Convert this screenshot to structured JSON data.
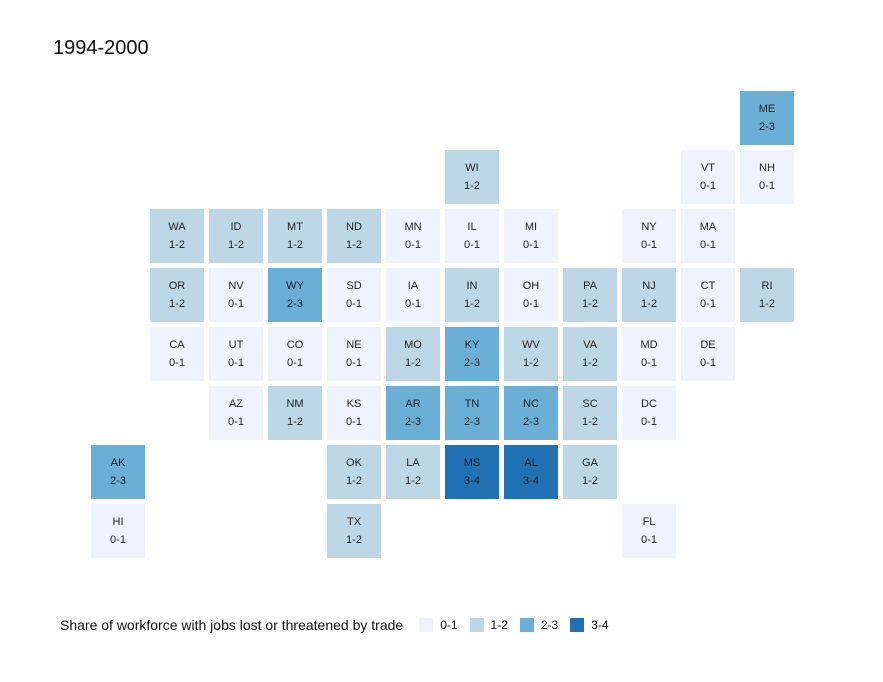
{
  "title": "1994-2000",
  "legend": {
    "title": "Share of workforce with jobs lost or threatened by trade",
    "items": [
      {
        "label": "0-1",
        "color": "#eff3ff"
      },
      {
        "label": "1-2",
        "color": "#bdd7e7"
      },
      {
        "label": "2-3",
        "color": "#6baed6"
      },
      {
        "label": "3-4",
        "color": "#2171b5"
      }
    ]
  },
  "states": [
    {
      "abbr": "ME",
      "range": "2-3",
      "col": 11,
      "row": 0
    },
    {
      "abbr": "WI",
      "range": "1-2",
      "col": 6,
      "row": 1
    },
    {
      "abbr": "VT",
      "range": "0-1",
      "col": 10,
      "row": 1
    },
    {
      "abbr": "NH",
      "range": "0-1",
      "col": 11,
      "row": 1
    },
    {
      "abbr": "WA",
      "range": "1-2",
      "col": 1,
      "row": 2
    },
    {
      "abbr": "ID",
      "range": "1-2",
      "col": 2,
      "row": 2
    },
    {
      "abbr": "MT",
      "range": "1-2",
      "col": 3,
      "row": 2
    },
    {
      "abbr": "ND",
      "range": "1-2",
      "col": 4,
      "row": 2
    },
    {
      "abbr": "MN",
      "range": "0-1",
      "col": 5,
      "row": 2
    },
    {
      "abbr": "IL",
      "range": "0-1",
      "col": 6,
      "row": 2
    },
    {
      "abbr": "MI",
      "range": "0-1",
      "col": 7,
      "row": 2
    },
    {
      "abbr": "NY",
      "range": "0-1",
      "col": 9,
      "row": 2
    },
    {
      "abbr": "MA",
      "range": "0-1",
      "col": 10,
      "row": 2
    },
    {
      "abbr": "OR",
      "range": "1-2",
      "col": 1,
      "row": 3
    },
    {
      "abbr": "NV",
      "range": "0-1",
      "col": 2,
      "row": 3
    },
    {
      "abbr": "WY",
      "range": "2-3",
      "col": 3,
      "row": 3
    },
    {
      "abbr": "SD",
      "range": "0-1",
      "col": 4,
      "row": 3
    },
    {
      "abbr": "IA",
      "range": "0-1",
      "col": 5,
      "row": 3
    },
    {
      "abbr": "IN",
      "range": "1-2",
      "col": 6,
      "row": 3
    },
    {
      "abbr": "OH",
      "range": "0-1",
      "col": 7,
      "row": 3
    },
    {
      "abbr": "PA",
      "range": "1-2",
      "col": 8,
      "row": 3
    },
    {
      "abbr": "NJ",
      "range": "1-2",
      "col": 9,
      "row": 3
    },
    {
      "abbr": "CT",
      "range": "0-1",
      "col": 10,
      "row": 3
    },
    {
      "abbr": "RI",
      "range": "1-2",
      "col": 11,
      "row": 3
    },
    {
      "abbr": "CA",
      "range": "0-1",
      "col": 1,
      "row": 4
    },
    {
      "abbr": "UT",
      "range": "0-1",
      "col": 2,
      "row": 4
    },
    {
      "abbr": "CO",
      "range": "0-1",
      "col": 3,
      "row": 4
    },
    {
      "abbr": "NE",
      "range": "0-1",
      "col": 4,
      "row": 4
    },
    {
      "abbr": "MO",
      "range": "1-2",
      "col": 5,
      "row": 4
    },
    {
      "abbr": "KY",
      "range": "2-3",
      "col": 6,
      "row": 4
    },
    {
      "abbr": "WV",
      "range": "1-2",
      "col": 7,
      "row": 4
    },
    {
      "abbr": "VA",
      "range": "1-2",
      "col": 8,
      "row": 4
    },
    {
      "abbr": "MD",
      "range": "0-1",
      "col": 9,
      "row": 4
    },
    {
      "abbr": "DE",
      "range": "0-1",
      "col": 10,
      "row": 4
    },
    {
      "abbr": "AZ",
      "range": "0-1",
      "col": 2,
      "row": 5
    },
    {
      "abbr": "NM",
      "range": "1-2",
      "col": 3,
      "row": 5
    },
    {
      "abbr": "KS",
      "range": "0-1",
      "col": 4,
      "row": 5
    },
    {
      "abbr": "AR",
      "range": "2-3",
      "col": 5,
      "row": 5
    },
    {
      "abbr": "TN",
      "range": "2-3",
      "col": 6,
      "row": 5
    },
    {
      "abbr": "NC",
      "range": "2-3",
      "col": 7,
      "row": 5
    },
    {
      "abbr": "SC",
      "range": "1-2",
      "col": 8,
      "row": 5
    },
    {
      "abbr": "DC",
      "range": "0-1",
      "col": 9,
      "row": 5
    },
    {
      "abbr": "AK",
      "range": "2-3",
      "col": 0,
      "row": 6
    },
    {
      "abbr": "OK",
      "range": "1-2",
      "col": 4,
      "row": 6
    },
    {
      "abbr": "LA",
      "range": "1-2",
      "col": 5,
      "row": 6
    },
    {
      "abbr": "MS",
      "range": "3-4",
      "col": 6,
      "row": 6
    },
    {
      "abbr": "AL",
      "range": "3-4",
      "col": 7,
      "row": 6
    },
    {
      "abbr": "GA",
      "range": "1-2",
      "col": 8,
      "row": 6
    },
    {
      "abbr": "HI",
      "range": "0-1",
      "col": 0,
      "row": 7
    },
    {
      "abbr": "TX",
      "range": "1-2",
      "col": 4,
      "row": 7
    },
    {
      "abbr": "FL",
      "range": "0-1",
      "col": 9,
      "row": 7
    }
  ]
}
